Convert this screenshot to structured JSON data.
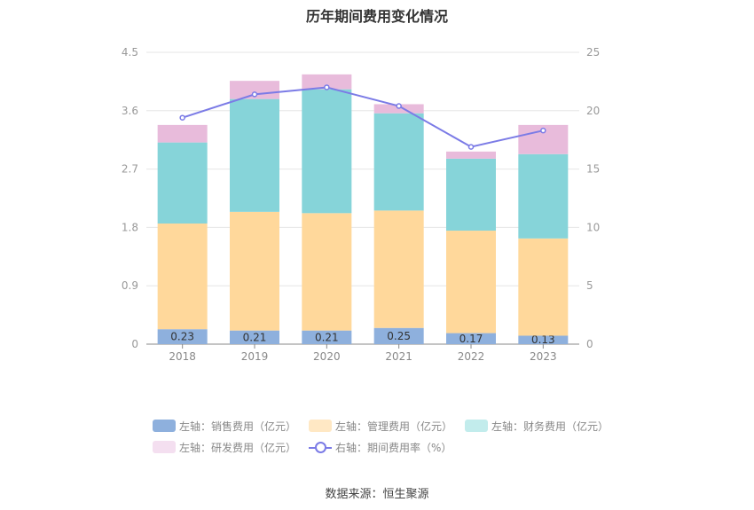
{
  "chart_data": {
    "type": "bar",
    "title": "历年期间费用变化情况",
    "categories": [
      "2018",
      "2019",
      "2020",
      "2021",
      "2022",
      "2023"
    ],
    "left_axis": {
      "ticks": [
        "0",
        "0.9",
        "1.8",
        "2.7",
        "3.6",
        "4.5"
      ],
      "ylim": [
        0,
        4.5
      ]
    },
    "right_axis": {
      "ticks": [
        "0",
        "5",
        "10",
        "15",
        "20",
        "25"
      ],
      "ylim": [
        0,
        25
      ]
    },
    "stacked": true,
    "series": [
      {
        "name": "左轴：销售费用（亿元）",
        "values": [
          0.23,
          0.21,
          0.21,
          0.25,
          0.17,
          0.13
        ],
        "color": "#8eb0dd",
        "show_labels": true
      },
      {
        "name": "左轴：管理费用（亿元）",
        "values": [
          1.63,
          1.83,
          1.81,
          1.81,
          1.58,
          1.5
        ],
        "color": "#ffd89b"
      },
      {
        "name": "左轴：财务费用（亿元）",
        "values": [
          1.25,
          1.74,
          1.91,
          1.5,
          1.11,
          1.3
        ],
        "color": "#86d4d9"
      },
      {
        "name": "左轴：研发费用（亿元）",
        "values": [
          0.27,
          0.28,
          0.23,
          0.14,
          0.11,
          0.45
        ],
        "color": "#e8bbdb"
      }
    ],
    "line_series": {
      "name": "右轴：期间费用率（%）",
      "axis": "right",
      "values": [
        19.4,
        21.4,
        22.0,
        20.4,
        16.9,
        18.3
      ],
      "color": "#7b7be6"
    },
    "legend_colors": [
      "#8eb0dd",
      "#ffe8c4",
      "#c2ecec",
      "#f4dff0"
    ],
    "grid": true,
    "legend_position": "bottom"
  },
  "source": "数据来源：恒生聚源"
}
